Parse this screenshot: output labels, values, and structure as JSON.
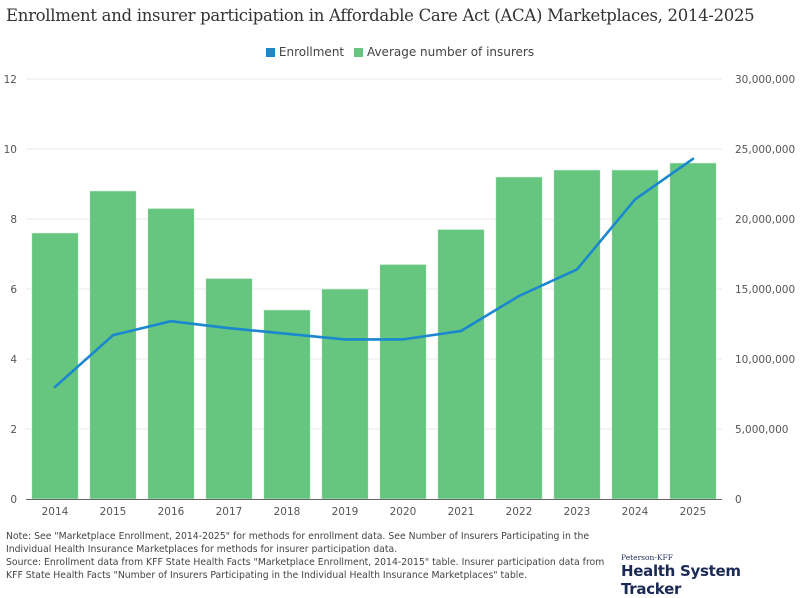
{
  "chart_data": {
    "type": "bar+line",
    "title": "Enrollment and insurer participation in Affordable Care Act (ACA) Marketplaces, 2014-2025",
    "categories": [
      "2014",
      "2015",
      "2016",
      "2017",
      "2018",
      "2019",
      "2020",
      "2021",
      "2022",
      "2023",
      "2024",
      "2025"
    ],
    "series": [
      {
        "name": "Enrollment",
        "type": "line",
        "axis": "right",
        "color": "#1a87cf",
        "values": [
          8000000,
          11700000,
          12700000,
          12200000,
          11800000,
          11400000,
          11400000,
          12000000,
          14500000,
          16400000,
          21400000,
          24300000
        ]
      },
      {
        "name": "Average number of insurers",
        "type": "bar",
        "axis": "left",
        "color": "#66c57f",
        "values": [
          7.6,
          8.8,
          8.3,
          6.3,
          5.4,
          6.0,
          6.7,
          7.7,
          9.2,
          9.4,
          9.4,
          9.6
        ]
      }
    ],
    "left_axis": {
      "ylim": [
        0,
        12
      ],
      "ticks": [
        "0",
        "2",
        "4",
        "6",
        "8",
        "10",
        "12"
      ]
    },
    "right_axis": {
      "ylim": [
        0,
        30000000
      ],
      "ticks": [
        "0",
        "5,000,000",
        "10,000,000",
        "15,000,000",
        "20,000,000",
        "25,000,000",
        "30,000,000"
      ]
    },
    "legend_position": "top-center",
    "grid": true
  },
  "legend": {
    "items": [
      {
        "label": "Enrollment",
        "color": "#1a87cf"
      },
      {
        "label": "Average number of insurers",
        "color": "#66c57f"
      }
    ]
  },
  "footer": {
    "note": "Note: See \"Marketplace Enrollment, 2014-2025\" for methods for enrollment data. See Number of Insurers Participating in the Individual Health Insurance Marketplaces for methods for insurer participation data.",
    "source": "Source: Enrollment data from KFF State Health Facts \"Marketplace Enrollment, 2014-2015\" table. Insurer participation data from KFF State Health Facts \"Number of Insurers Participating in the Individual Health Insurance Marketplaces\" table."
  },
  "logo": {
    "small": "Peterson-KFF",
    "big": "Health System Tracker"
  }
}
